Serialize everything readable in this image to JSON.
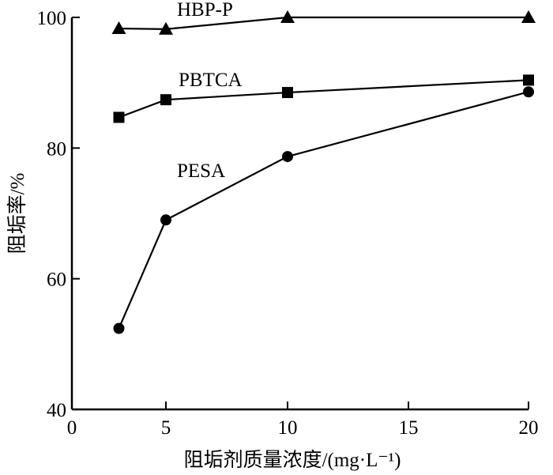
{
  "chart_data": {
    "type": "line",
    "title": "",
    "xlabel": "阻垢剂质量浓度/(mg·L⁻¹)",
    "ylabel": "阻垢率/%",
    "xlim": [
      0,
      20
    ],
    "ylim": [
      40,
      100
    ],
    "xticks": [
      "0",
      "5",
      "10",
      "15",
      "20"
    ],
    "yticks": [
      "40",
      "60",
      "80",
      "100"
    ],
    "grid": false,
    "x": [
      2.5,
      5,
      10,
      20
    ],
    "series": [
      {
        "name": "HBP-P",
        "marker": "triangle",
        "values": [
          98.3,
          98.2,
          100,
          100
        ]
      },
      {
        "name": "PBTCA",
        "marker": "square",
        "values": [
          84.7,
          87.4,
          88.5,
          90.4
        ]
      },
      {
        "name": "PESA",
        "marker": "circle",
        "values": [
          52.4,
          69.0,
          78.7,
          88.6
        ]
      }
    ]
  }
}
